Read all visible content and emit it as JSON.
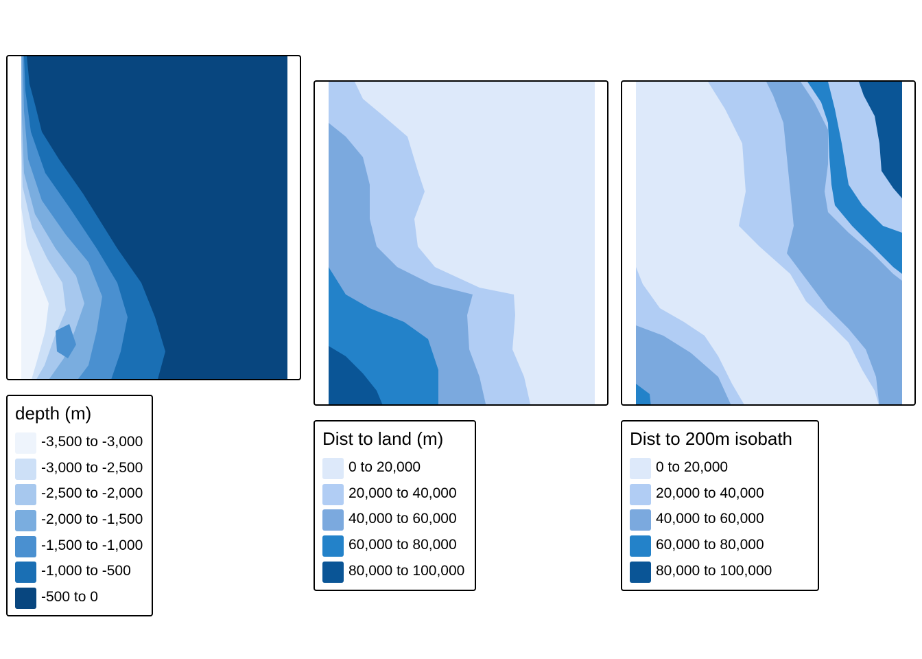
{
  "maps": [
    {
      "legend": {
        "title": "depth (m)",
        "items": [
          {
            "label": "-3,500 to -3,000",
            "color": "#eef4fc"
          },
          {
            "label": "-3,000 to -2,500",
            "color": "#cde0f7"
          },
          {
            "label": "-2,500 to -2,000",
            "color": "#a7c8ee"
          },
          {
            "label": "-2,000 to -1,500",
            "color": "#7aaddf"
          },
          {
            "label": "-1,500 to -1,000",
            "color": "#4a90d0"
          },
          {
            "label": "-1,000 to -500",
            "color": "#1a6fb4"
          },
          {
            "label": "-500 to 0",
            "color": "#08467f"
          }
        ]
      }
    },
    {
      "legend": {
        "title": "Dist to land (m)",
        "items": [
          {
            "label": "0 to 20,000",
            "color": "#dde9fa"
          },
          {
            "label": "20,000 to 40,000",
            "color": "#b1cdf4"
          },
          {
            "label": "40,000 to 60,000",
            "color": "#7ba9de"
          },
          {
            "label": "60,000 to 80,000",
            "color": "#2382c9"
          },
          {
            "label": "80,000 to 100,000",
            "color": "#0a5596"
          }
        ]
      }
    },
    {
      "legend": {
        "title": "Dist to 200m isobath",
        "items": [
          {
            "label": "0 to 20,000",
            "color": "#dde9fa"
          },
          {
            "label": "20,000 to 40,000",
            "color": "#b1cdf4"
          },
          {
            "label": "40,000 to 60,000",
            "color": "#7ba9de"
          },
          {
            "label": "60,000 to 80,000",
            "color": "#2382c9"
          },
          {
            "label": "80,000 to 100,000",
            "color": "#0a5596"
          }
        ]
      }
    }
  ]
}
